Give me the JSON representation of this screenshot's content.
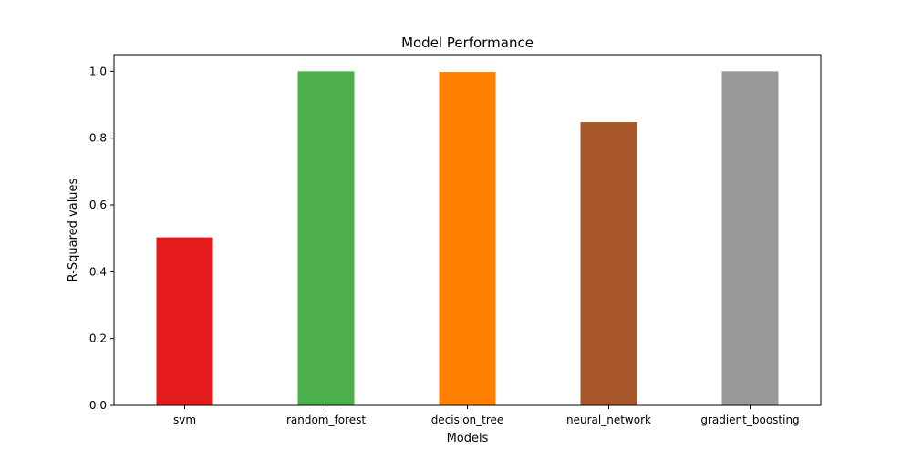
{
  "chart_data": {
    "type": "bar",
    "title": "Model Performance",
    "xlabel": "Models",
    "ylabel": "R-Squared values",
    "categories": [
      "svm",
      "random_forest",
      "decision_tree",
      "neural_network",
      "gradient_boosting"
    ],
    "values": [
      0.503,
      1.0,
      0.998,
      0.848,
      1.0
    ],
    "colors": [
      "#e41a1c",
      "#4daf4a",
      "#ff7f00",
      "#a65628",
      "#999999"
    ],
    "ylim": [
      0,
      1.05
    ],
    "yticks": [
      0.0,
      0.2,
      0.4,
      0.6,
      0.8,
      1.0
    ],
    "ytick_labels": [
      "0.0",
      "0.2",
      "0.4",
      "0.6",
      "0.8",
      "1.0"
    ],
    "grid": false,
    "legend": "none"
  }
}
